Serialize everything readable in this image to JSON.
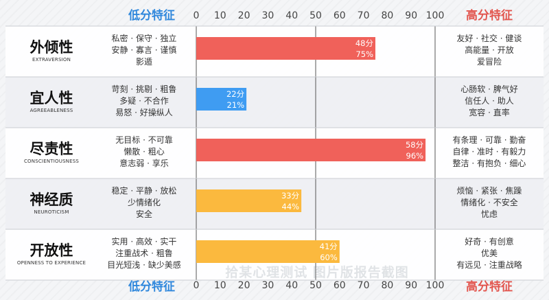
{
  "header": {
    "low_label": "低分特征",
    "high_label": "高分特征"
  },
  "watermark": "拾某心理测试 图片版报告截图",
  "chart_data": {
    "type": "bar",
    "orientation": "horizontal",
    "xlim": [
      0,
      100
    ],
    "ticks": [
      0,
      10,
      20,
      30,
      40,
      50,
      60,
      70,
      80,
      90,
      100
    ],
    "categories": [
      {
        "name": "外倾性",
        "en": "EXTRAVERSION",
        "score": 48,
        "score_label": "48分",
        "percentile": 75,
        "percentile_label": "75%",
        "color": "#f0615a",
        "low": [
          "私密 · 保守 · 独立",
          "安静 · 寡言 · 谨慎",
          "影遁"
        ],
        "high": [
          "友好 · 社交 · 健谈",
          "高能量 · 开放",
          "爱冒险"
        ]
      },
      {
        "name": "宜人性",
        "en": "AGREEABLENESS",
        "score": 22,
        "score_label": "22分",
        "percentile": 21,
        "percentile_label": "21%",
        "color": "#3f9cf2",
        "low": [
          "苛刻 · 挑剔 · 粗鲁",
          "多疑 · 不合作",
          "易怒 · 好操纵人"
        ],
        "high": [
          "心肠软 · 脾气好",
          "信任人 · 助人",
          "宽容 · 直率"
        ]
      },
      {
        "name": "尽责性",
        "en": "CONSCIENTIOUSNESS",
        "score": 58,
        "score_label": "58分",
        "percentile": 96,
        "percentile_label": "96%",
        "color": "#f0615a",
        "low": [
          "无目标 · 不可靠",
          "懒散 · 粗心",
          "意志弱 · 享乐"
        ],
        "high": [
          "有条理 · 可靠 · 勤奋",
          "自律 · 准时 · 有毅力",
          "整洁 · 有抱负 · 细心"
        ]
      },
      {
        "name": "神经质",
        "en": "NEUROTICISM",
        "score": 33,
        "score_label": "33分",
        "percentile": 44,
        "percentile_label": "44%",
        "color": "#fbb93e",
        "low": [
          "稳定 · 平静 · 放松",
          "少情绪化",
          "安全"
        ],
        "high": [
          "烦恼 · 紧张 · 焦躁",
          "情绪化 · 不安全",
          "忧虑"
        ]
      },
      {
        "name": "开放性",
        "en": "OPENNESS TO EXPERIENCE",
        "score": 41,
        "score_label": "41分",
        "percentile": 60,
        "percentile_label": "60%",
        "color": "#fbb93e",
        "low": [
          "实用 · 高效 · 实干",
          "注重战术 · 粗鲁",
          "目光短浅 · 缺少美感"
        ],
        "high": [
          "好奇 · 有创意",
          "优美",
          "有远见 · 注重战略"
        ]
      }
    ]
  }
}
